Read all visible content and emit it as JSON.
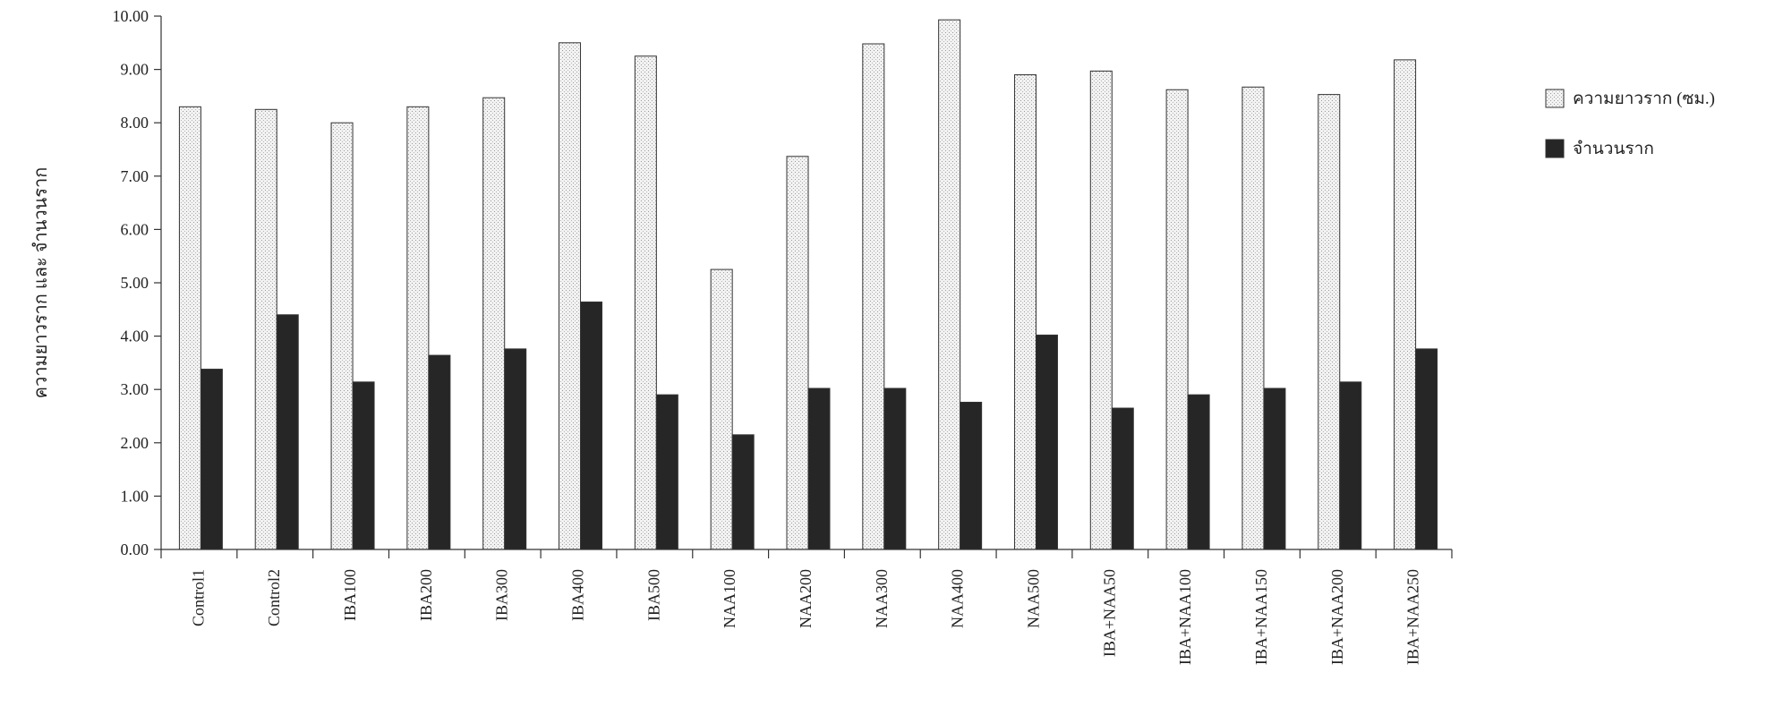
{
  "chart_data": {
    "type": "bar",
    "title": "",
    "xlabel": "",
    "ylabel": "ความยาวราก และ จำนวนราก",
    "ylim": [
      0,
      10
    ],
    "y_ticks": [
      "0.00",
      "1.00",
      "2.00",
      "3.00",
      "4.00",
      "5.00",
      "6.00",
      "7.00",
      "8.00",
      "9.00",
      "10.00"
    ],
    "grid": false,
    "legend_position": "right",
    "categories": [
      "Control1",
      "Control2",
      "IBA100",
      "IBA200",
      "IBA300",
      "IBA400",
      "IBA500",
      "NAA100",
      "NAA200",
      "NAA300",
      "NAA400",
      "NAA500",
      "IBA+NAA50",
      "IBA+NAA100",
      "IBA+NAA150",
      "IBA+NAA200",
      "IBA+NAA250"
    ],
    "series": [
      {
        "name": "ความยาวราก (ซม.)",
        "color": "#eeeeee",
        "values": [
          8.3,
          8.25,
          8.0,
          8.3,
          8.47,
          9.5,
          9.25,
          5.25,
          7.37,
          9.48,
          9.93,
          8.9,
          8.97,
          8.62,
          8.67,
          8.53,
          9.18
        ]
      },
      {
        "name": "จำนวนราก",
        "color": "#262626",
        "values": [
          3.38,
          4.4,
          3.14,
          3.64,
          3.76,
          4.64,
          2.9,
          2.15,
          3.02,
          3.02,
          2.76,
          4.02,
          2.65,
          2.9,
          3.02,
          3.14,
          3.76
        ]
      }
    ]
  }
}
